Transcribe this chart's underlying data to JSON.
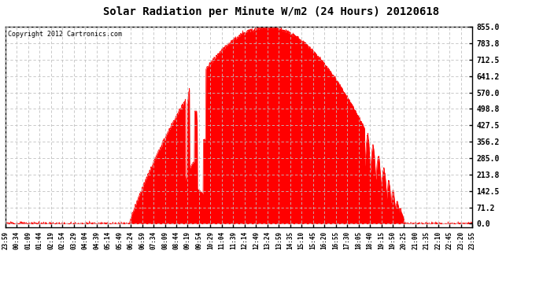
{
  "title": "Solar Radiation per Minute W/m2 (24 Hours) 20120618",
  "copyright": "Copyright 2012 Cartronics.com",
  "background_color": "#ffffff",
  "plot_bg_color": "#ffffff",
  "fill_color": "#ff0000",
  "line_color": "#ff0000",
  "grid_color": "#c0c0c0",
  "yticks": [
    0.0,
    71.2,
    142.5,
    213.8,
    285.0,
    356.2,
    427.5,
    498.8,
    570.0,
    641.2,
    712.5,
    783.8,
    855.0
  ],
  "ymax": 855.0,
  "ymin": -15.0,
  "x_labels": [
    "23:59",
    "00:34",
    "01:09",
    "01:44",
    "02:19",
    "02:54",
    "03:29",
    "04:04",
    "04:39",
    "05:14",
    "05:49",
    "06:24",
    "06:59",
    "07:34",
    "08:09",
    "08:44",
    "09:19",
    "09:54",
    "10:29",
    "11:04",
    "11:39",
    "12:14",
    "12:49",
    "13:24",
    "13:59",
    "14:35",
    "15:10",
    "15:45",
    "16:20",
    "16:55",
    "17:30",
    "18:05",
    "18:40",
    "19:15",
    "19:50",
    "20:25",
    "21:00",
    "21:35",
    "22:10",
    "22:45",
    "23:20",
    "23:55"
  ],
  "solar_peak": 855.0,
  "num_points": 1440
}
